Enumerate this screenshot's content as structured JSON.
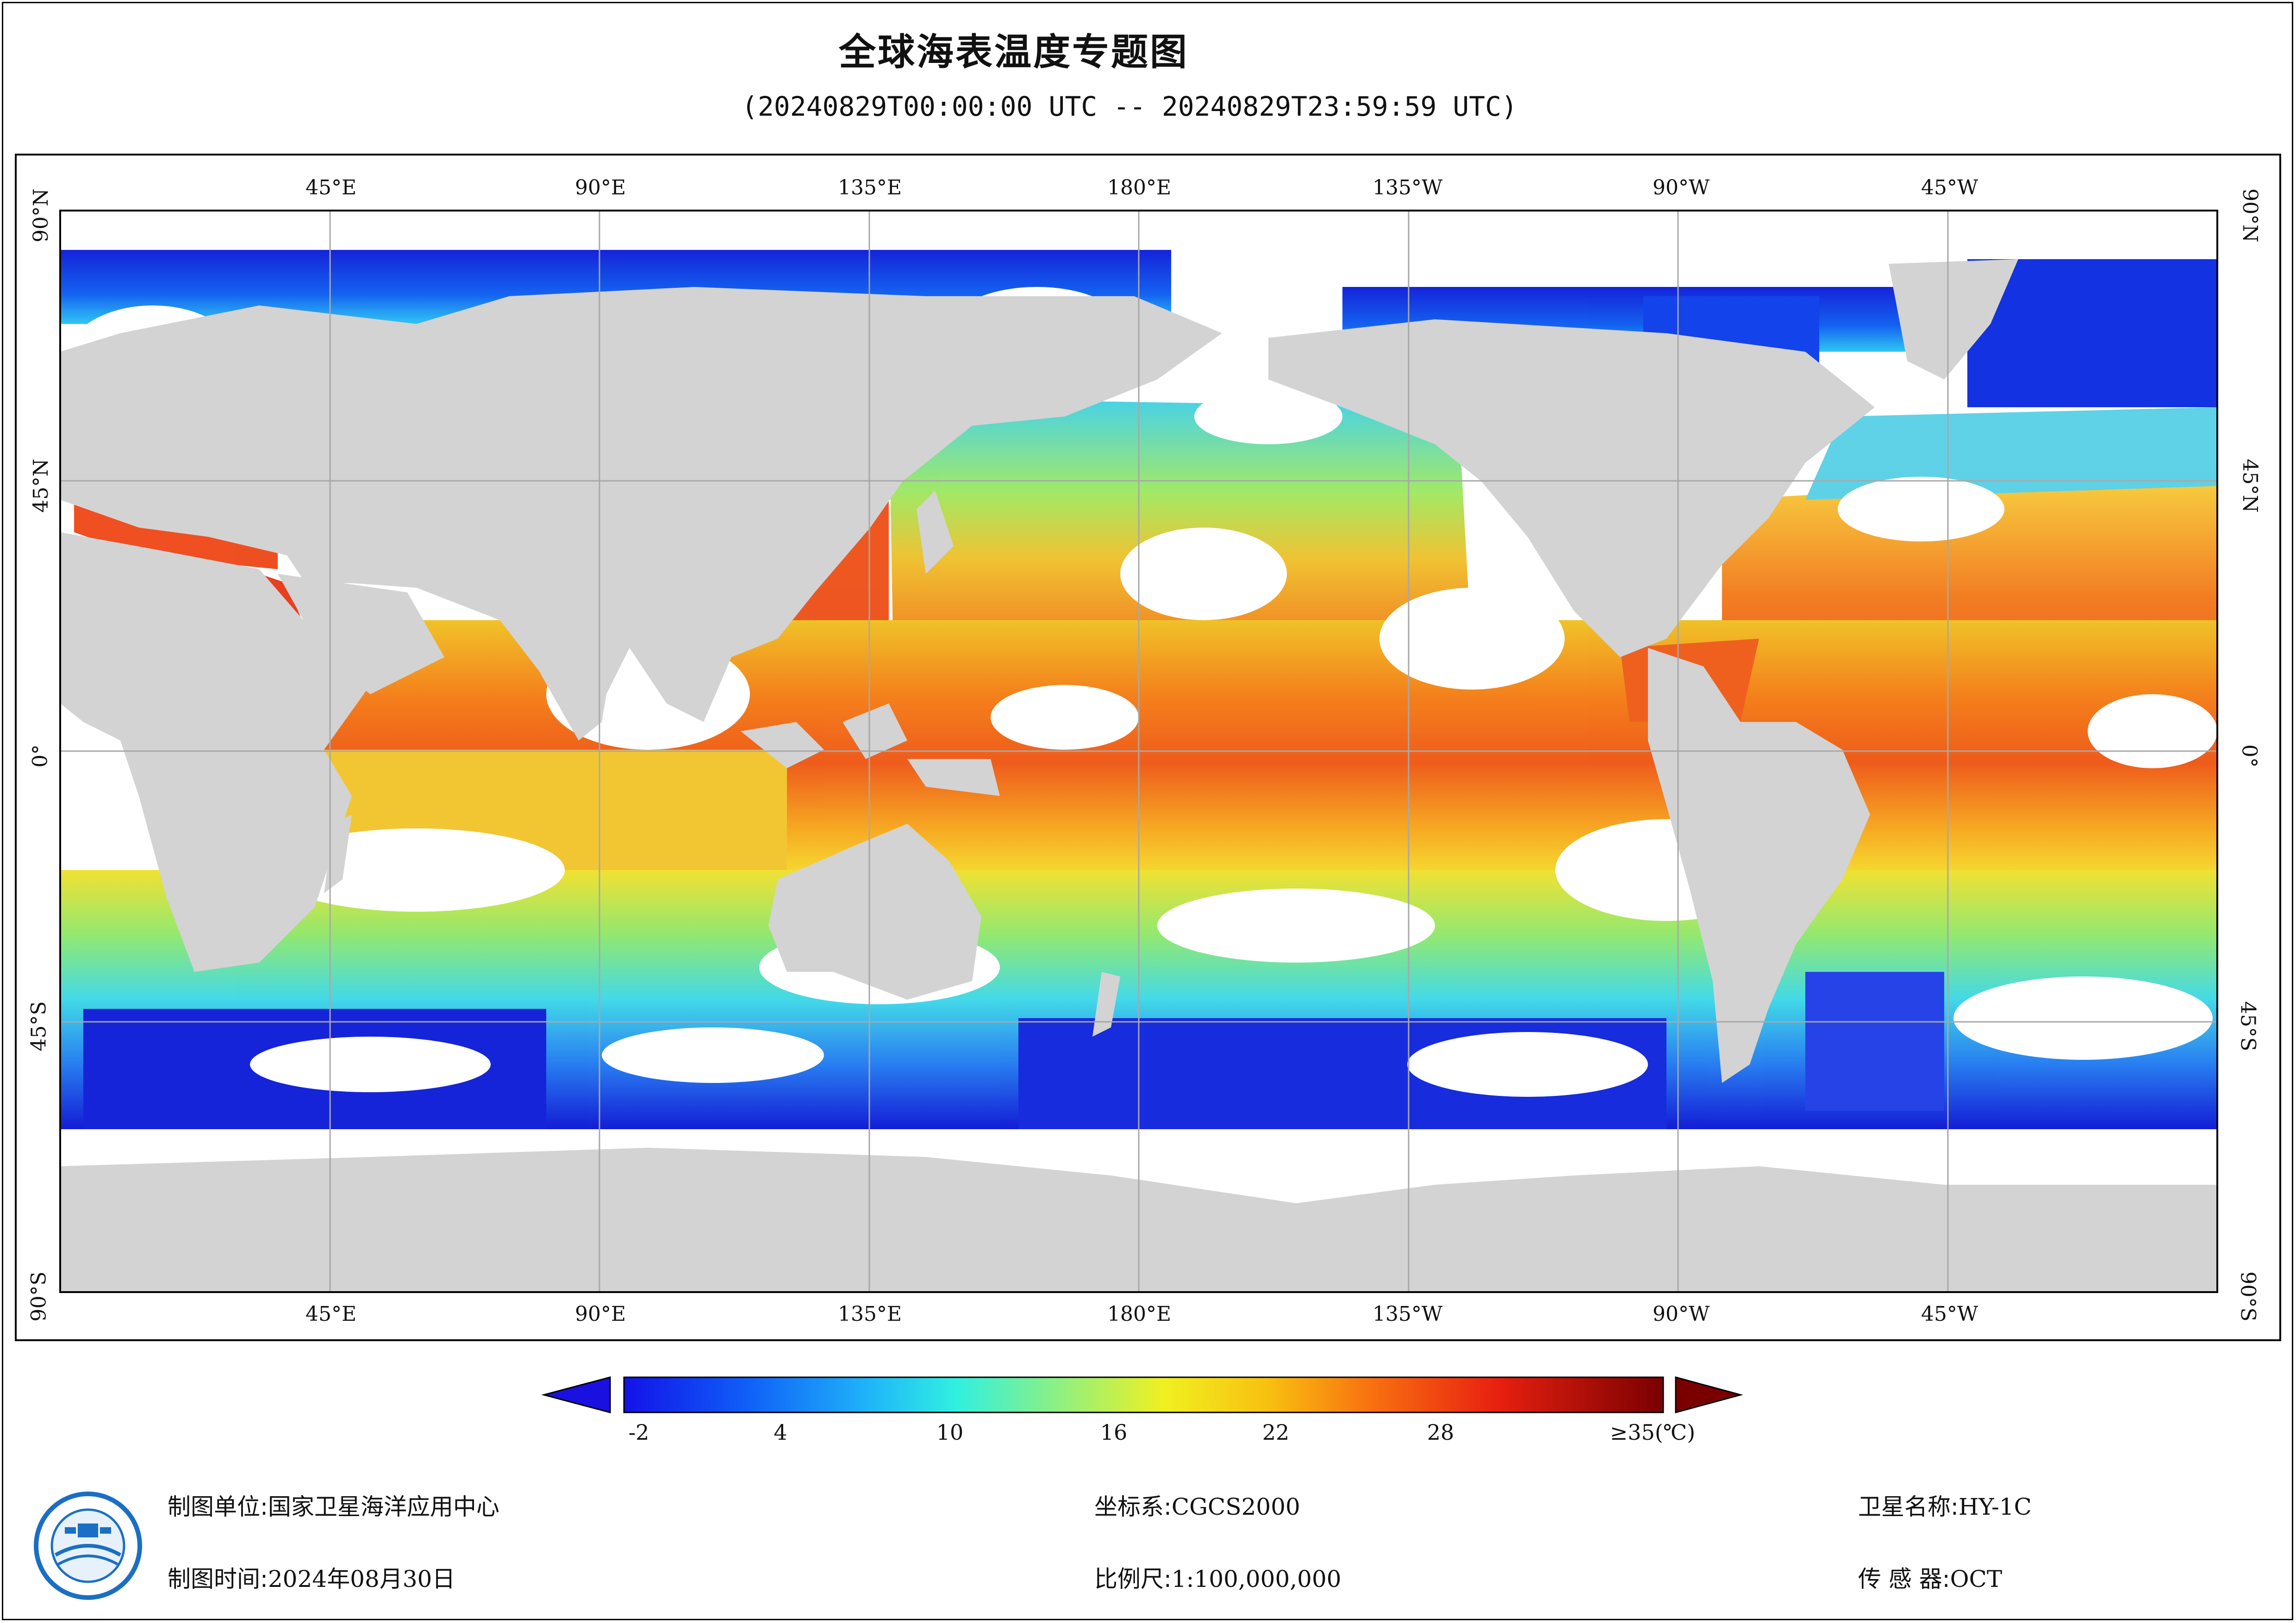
{
  "title": "全球海表温度专题图",
  "subtitle": "(20240829T00:00:00 UTC -- 20240829T23:59:59 UTC)",
  "map": {
    "lon_labels": [
      "45°E",
      "90°E",
      "135°E",
      "180°E",
      "135°W",
      "90°W",
      "45°W"
    ],
    "lat_labels": [
      "90°N",
      "45°N",
      "0°",
      "45°S",
      "90°S"
    ],
    "colors": {
      "land": "#d3d3d4",
      "no_data": "#ffffff",
      "grid": "#a8a8a8"
    }
  },
  "colorbar": {
    "tick_labels": [
      "-2",
      "4",
      "10",
      "16",
      "22",
      "28",
      "≥35(℃)"
    ],
    "under_color": "#1a10e0",
    "over_color": "#7a0000"
  },
  "footer": {
    "unit_label": "制图单位:",
    "unit_value": "国家卫星海洋应用中心",
    "time_label": "制图时间:",
    "time_value": "2024年08月30日",
    "crs_label": "坐标系:",
    "crs_value": "CGCS2000",
    "scale_label": "比例尺:",
    "scale_value": "1:100,000,000",
    "sat_label": "卫星名称:",
    "sat_value": "HY-1C",
    "sensor_label": "传 感 器:",
    "sensor_value": "OCT"
  }
}
